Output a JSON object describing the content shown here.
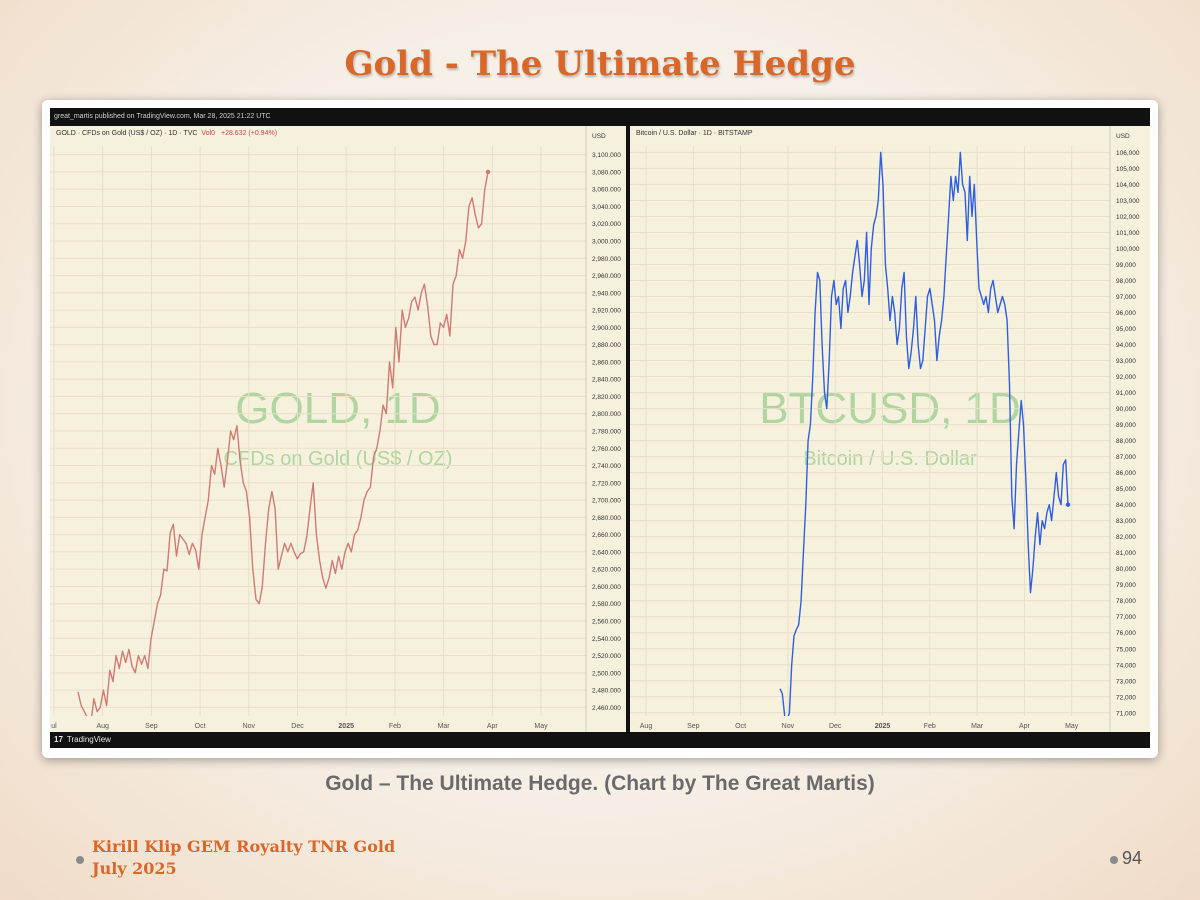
{
  "slide": {
    "title": "Gold - The Ultimate Hedge",
    "caption": "Gold – The Ultimate Hedge. (Chart by The Great Martis)",
    "footer_line1": "Kirill Klip GEM Royalty TNR Gold",
    "footer_line2": "July 2025",
    "page_number": "94"
  },
  "tv": {
    "header": "great_martis published on TradingView.com, Mar 28, 2025 21:22 UTC",
    "footer_logo": "17",
    "footer_text": "TradingView"
  },
  "colors": {
    "gold_line": "#d07a74",
    "btc_line": "#2f5fe0",
    "title": "#d9672a",
    "watermark": "#78be6e"
  },
  "chart_data": [
    {
      "type": "line",
      "panel_title": "GOLD · CFDs on Gold (US$ / OZ) · 1D · TVC",
      "vol_label": "Vol0",
      "change_label": "+28.632 (+0.94%)",
      "currency": "USD",
      "watermark": "GOLD, 1D",
      "watermark_sub": "CFDs on Gold (US$ / OZ)",
      "x_ticks": [
        "ul",
        "Aug",
        "Sep",
        "Oct",
        "Nov",
        "Dec",
        "2025",
        "Feb",
        "Mar",
        "Apr",
        "May"
      ],
      "y_ticks": [
        "3,100.000",
        "3,080.000",
        "3,060.000",
        "3,040.000",
        "3,020.000",
        "3,000.000",
        "2,980.000",
        "2,960.000",
        "2,940.000",
        "2,920.000",
        "2,900.000",
        "2,880.000",
        "2,860.000",
        "2,840.000",
        "2,820.000",
        "2,800.000",
        "2,780.000",
        "2,760.000",
        "2,740.000",
        "2,720.000",
        "2,700.000",
        "2,680.000",
        "2,660.000",
        "2,640.000",
        "2,620.000",
        "2,600.000",
        "2,580.000",
        "2,560.000",
        "2,540.000",
        "2,520.000",
        "2,500.000",
        "2,480.000",
        "2,460.000"
      ],
      "ylim": [
        2450,
        3110
      ],
      "grid": true,
      "series": [
        {
          "values": [
            2478,
            2462,
            2455,
            2448,
            2440,
            2470,
            2455,
            2460,
            2480,
            2462,
            2503,
            2490,
            2520,
            2505,
            2525,
            2512,
            2527,
            2508,
            2500,
            2520,
            2510,
            2520,
            2505,
            2540,
            2560,
            2580,
            2590,
            2620,
            2618,
            2662,
            2672,
            2635,
            2660,
            2655,
            2650,
            2637,
            2650,
            2642,
            2620,
            2660,
            2680,
            2700,
            2740,
            2730,
            2760,
            2740,
            2715,
            2745,
            2780,
            2770,
            2786,
            2745,
            2720,
            2710,
            2680,
            2620,
            2585,
            2580,
            2600,
            2650,
            2690,
            2710,
            2690,
            2620,
            2635,
            2650,
            2640,
            2650,
            2640,
            2632,
            2638,
            2640,
            2658,
            2690,
            2720,
            2660,
            2630,
            2610,
            2598,
            2610,
            2630,
            2615,
            2635,
            2620,
            2640,
            2650,
            2640,
            2660,
            2665,
            2680,
            2700,
            2710,
            2715,
            2750,
            2760,
            2780,
            2810,
            2800,
            2860,
            2830,
            2900,
            2860,
            2920,
            2900,
            2910,
            2930,
            2935,
            2920,
            2940,
            2950,
            2925,
            2890,
            2880,
            2880,
            2905,
            2900,
            2915,
            2890,
            2950,
            2960,
            2990,
            2980,
            3000,
            3040,
            3050,
            3030,
            3015,
            3020,
            3060,
            3080
          ]
        }
      ]
    },
    {
      "type": "line",
      "panel_title": "Bitcoin / U.S. Dollar · 1D · BITSTAMP",
      "currency": "USD",
      "watermark": "BTCUSD, 1D",
      "watermark_sub": "Bitcoin / U.S. Dollar",
      "x_ticks": [
        "Aug",
        "Sep",
        "Oct",
        "Nov",
        "Dec",
        "2025",
        "Feb",
        "Mar",
        "Apr",
        "May"
      ],
      "y_ticks": [
        "106,000",
        "105,000",
        "104,000",
        "103,000",
        "102,000",
        "101,000",
        "100,000",
        "99,000",
        "98,000",
        "97,000",
        "96,000",
        "95,000",
        "94,000",
        "93,000",
        "92,000",
        "91,000",
        "90,000",
        "89,000",
        "88,000",
        "87,000",
        "86,000",
        "85,000",
        "84,000",
        "83,000",
        "82,000",
        "81,000",
        "80,000",
        "79,000",
        "78,000",
        "77,000",
        "76,000",
        "75,000",
        "74,000",
        "73,000",
        "72,000",
        "71,000"
      ],
      "ylim": [
        70800,
        106400
      ],
      "grid": true,
      "series": [
        {
          "values": [
            72500,
            72200,
            70800,
            70500,
            71000,
            74000,
            75800,
            76200,
            76500,
            78000,
            81000,
            84000,
            88000,
            89000,
            92000,
            96000,
            98500,
            98000,
            94000,
            91000,
            90000,
            93000,
            97000,
            98000,
            96500,
            97000,
            95000,
            97500,
            98000,
            96000,
            97000,
            98500,
            99500,
            100500,
            99000,
            97000,
            98000,
            101000,
            96500,
            100000,
            101500,
            102000,
            103000,
            106000,
            104000,
            99000,
            97500,
            95500,
            97000,
            96000,
            94000,
            95000,
            97500,
            98500,
            94500,
            92500,
            93500,
            95000,
            97000,
            94000,
            92500,
            93000,
            95000,
            97000,
            97500,
            96500,
            95500,
            93000,
            94500,
            95500,
            97000,
            99500,
            102000,
            104500,
            103000,
            104500,
            103500,
            106000,
            104000,
            103500,
            100500,
            104500,
            102000,
            104000,
            100500,
            97500,
            97000,
            96500,
            97000,
            96000,
            97500,
            98000,
            97000,
            96000,
            96500,
            97000,
            96500,
            95500,
            91500,
            84500,
            82500,
            86500,
            88500,
            90500,
            89000,
            85500,
            81500,
            78500,
            80000,
            82000,
            83500,
            81500,
            83000,
            82500,
            83500,
            84000,
            83000,
            84500,
            86000,
            84500,
            84000,
            86500,
            86800,
            84000
          ]
        }
      ]
    }
  ]
}
